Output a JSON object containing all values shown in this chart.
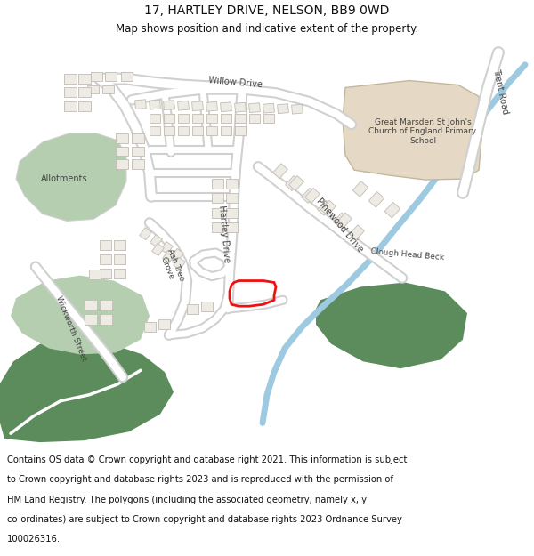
{
  "title": "17, HARTLEY DRIVE, NELSON, BB9 0WD",
  "subtitle": "Map shows position and indicative extent of the property.",
  "bg_color": "#ffffff",
  "map_bg": "#ffffff",
  "road_outer": "#d0d0d0",
  "road_inner": "#ffffff",
  "green_dark": "#5c8c5c",
  "green_light": "#b5ceb0",
  "water_color": "#9ecae1",
  "building_fill": "#eeebe4",
  "building_outline": "#c0bdb5",
  "school_fill": "#e5d9c5",
  "school_outline": "#c0b89a",
  "plot_color": "#ee1111",
  "title_fontsize": 10,
  "subtitle_fontsize": 8.5,
  "footer_fontsize": 7.2,
  "label_fontsize": 7.0,
  "footer_lines": [
    "Contains OS data © Crown copyright and database right 2021. This information is subject",
    "to Crown copyright and database rights 2023 and is reproduced with the permission of",
    "HM Land Registry. The polygons (including the associated geometry, namely x, y",
    "co-ordinates) are subject to Crown copyright and database rights 2023 Ordnance Survey",
    "100026316."
  ]
}
